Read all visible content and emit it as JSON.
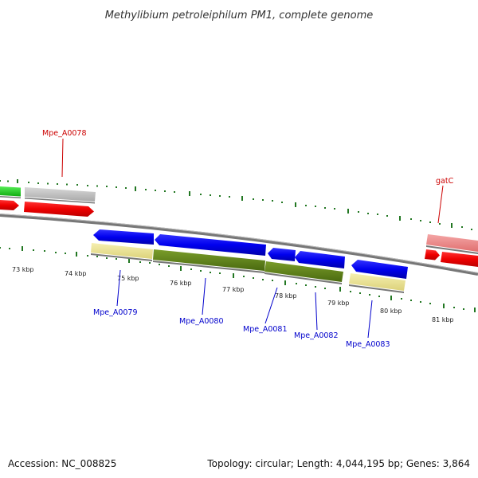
{
  "title": "Methylibium petroleiphilum PM1, complete genome",
  "footer": {
    "accession": "Accession: NC_008825",
    "summary": "Topology: circular; Length: 4,044,195 bp; Genes: 3,864"
  },
  "scale_labels": [
    "73 kbp",
    "74 kbp",
    "75 kbp",
    "76 kbp",
    "77 kbp",
    "78 kbp",
    "79 kbp",
    "80 kbp",
    "81 kbp"
  ],
  "gene_labels": [
    {
      "name": "Mpe_A0078",
      "color": "#cc0000"
    },
    {
      "name": "gatC",
      "color": "#cc0000"
    },
    {
      "name": "Mpe_A0079",
      "color": "#0000cc"
    },
    {
      "name": "Mpe_A0080",
      "color": "#0000cc"
    },
    {
      "name": "Mpe_A0081",
      "color": "#0000cc"
    },
    {
      "name": "Mpe_A0082",
      "color": "#0000cc"
    },
    {
      "name": "Mpe_A0083",
      "color": "#0000cc"
    }
  ],
  "colors": {
    "forward_cds": "#ee0000",
    "reverse_cds": "#0000ee",
    "forward_feature": "#bbbbbb",
    "reverse_feature": "#e8e090",
    "cog_green": "#5a7d1a",
    "other_green": "#22cc22",
    "tick_green": "#227722",
    "backbone": "#888888"
  }
}
